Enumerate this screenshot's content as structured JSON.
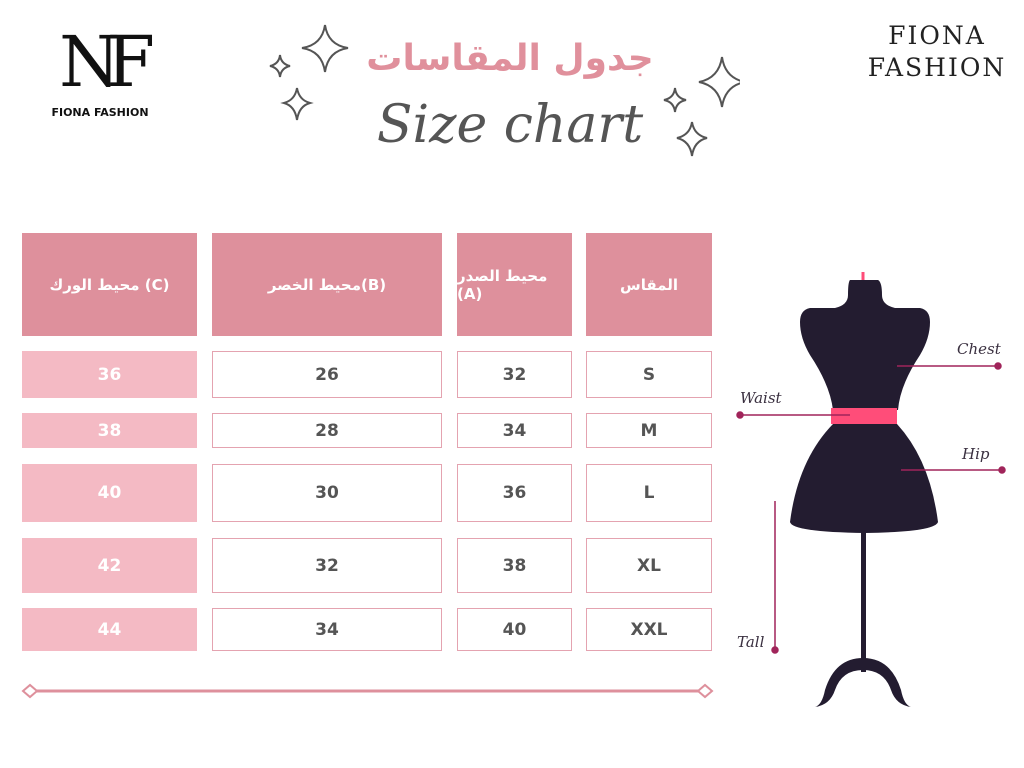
{
  "logo": {
    "monogram": "NF",
    "name": "FIONA FASHION"
  },
  "brand": {
    "line1": "FIONA",
    "line2": "FASHION"
  },
  "title": {
    "arabic": "جدول المقاسات",
    "english": "Size chart"
  },
  "table": {
    "headers": [
      "المقاس",
      "محيط الصدر (A)",
      "محيط الخصر(B)",
      "محيط الورك (C)"
    ],
    "rows": [
      {
        "size": "S",
        "chest": "32",
        "waist": "26",
        "hip": "36"
      },
      {
        "size": "M",
        "chest": "34",
        "waist": "28",
        "hip": "38"
      },
      {
        "size": "L",
        "chest": "36",
        "waist": "30",
        "hip": "40"
      },
      {
        "size": "XL",
        "chest": "38",
        "waist": "32",
        "hip": "42"
      },
      {
        "size": "XXL",
        "chest": "40",
        "waist": "34",
        "hip": "44"
      }
    ]
  },
  "diagram": {
    "chest": "Chest",
    "waist": "Waist",
    "hip": "Hip",
    "tall": "Tall"
  },
  "colors": {
    "header": "#de909c",
    "hip_cell": "#f4bac4",
    "accent": "#a0245a",
    "belt": "#ff4d79",
    "mannequin": "#231c30"
  }
}
